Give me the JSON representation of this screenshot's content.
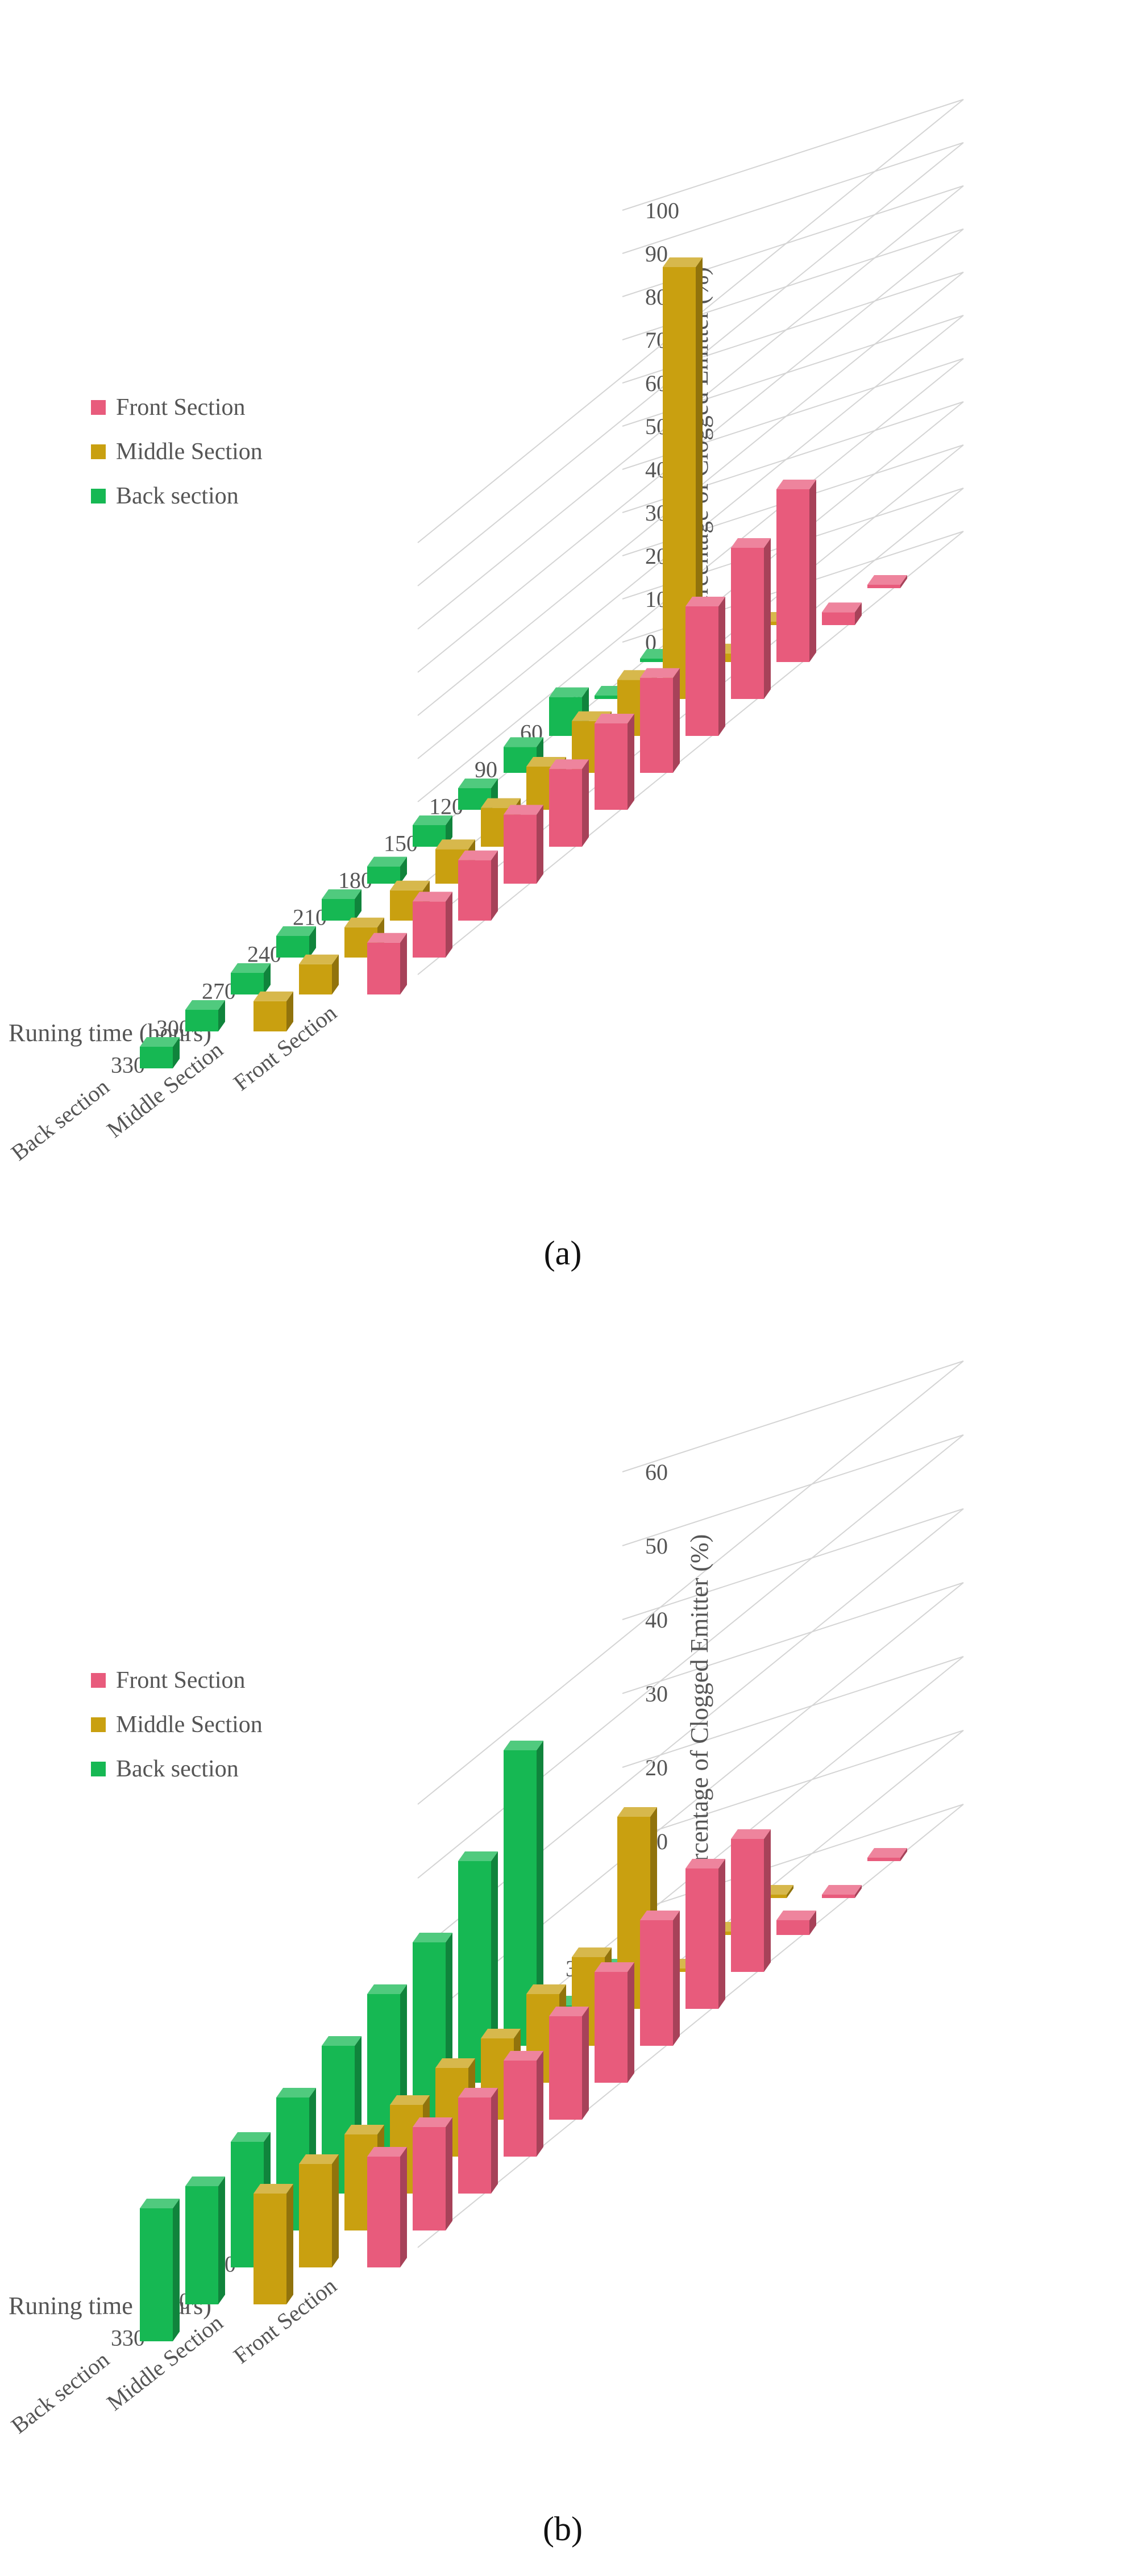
{
  "chart_data": [
    {
      "type": "bar",
      "caption": "(a)",
      "categories": [
        "0",
        "30",
        "60",
        "90",
        "120",
        "150",
        "180",
        "210",
        "240",
        "270",
        "300",
        "330"
      ],
      "depth_categories": [
        "Front Section",
        "Middle Section",
        "Back section"
      ],
      "xlabel": "Runing time  (hours)",
      "zlabel": "Percentage of Clogged Emitter (%)",
      "zlim": [
        0,
        100
      ],
      "zticks": [
        0,
        10,
        20,
        30,
        40,
        50,
        60,
        70,
        80,
        90,
        100
      ],
      "legend_position": "left",
      "series": [
        {
          "name": "Front Section",
          "values": [
            0,
            3,
            40,
            35,
            30,
            22,
            20,
            18,
            16,
            14,
            13,
            12
          ]
        },
        {
          "name": "Middle Section",
          "values": [
            0,
            2,
            100,
            13,
            12,
            10,
            9,
            8,
            7,
            7,
            7,
            7
          ]
        },
        {
          "name": "Back section",
          "values": [
            0,
            0,
            9,
            6,
            5,
            5,
            4,
            5,
            5,
            5,
            5,
            5
          ]
        }
      ],
      "colors": {
        "Front Section": "#e85b7c",
        "Middle Section": "#c9a010",
        "Back section": "#16b853"
      }
    },
    {
      "type": "bar",
      "caption": "(b)",
      "categories": [
        "0",
        "30",
        "60",
        "90",
        "120",
        "150",
        "180",
        "210",
        "240",
        "270",
        "300",
        "330"
      ],
      "depth_categories": [
        "Front Section",
        "Middle Section",
        "Back section"
      ],
      "xlabel": "Runing time  (hours)",
      "zlabel": "Percentage of Clogged Emitter (%)",
      "zlim": [
        0,
        60
      ],
      "zticks": [
        0,
        10,
        20,
        30,
        40,
        50,
        60
      ],
      "legend_position": "left",
      "series": [
        {
          "name": "Front Section",
          "values": [
            0,
            0,
            2,
            18,
            19,
            17,
            15,
            14,
            13,
            13,
            14,
            15
          ]
        },
        {
          "name": "Middle Section",
          "values": [
            0,
            0,
            0,
            26,
            12,
            12,
            11,
            12,
            12,
            13,
            14,
            15
          ]
        },
        {
          "name": "Back section",
          "values": [
            0,
            0,
            0,
            40,
            30,
            24,
            22,
            20,
            18,
            17,
            16,
            18
          ]
        }
      ],
      "colors": {
        "Front Section": "#e85b7c",
        "Middle Section": "#c9a010",
        "Back section": "#16b853"
      }
    }
  ]
}
